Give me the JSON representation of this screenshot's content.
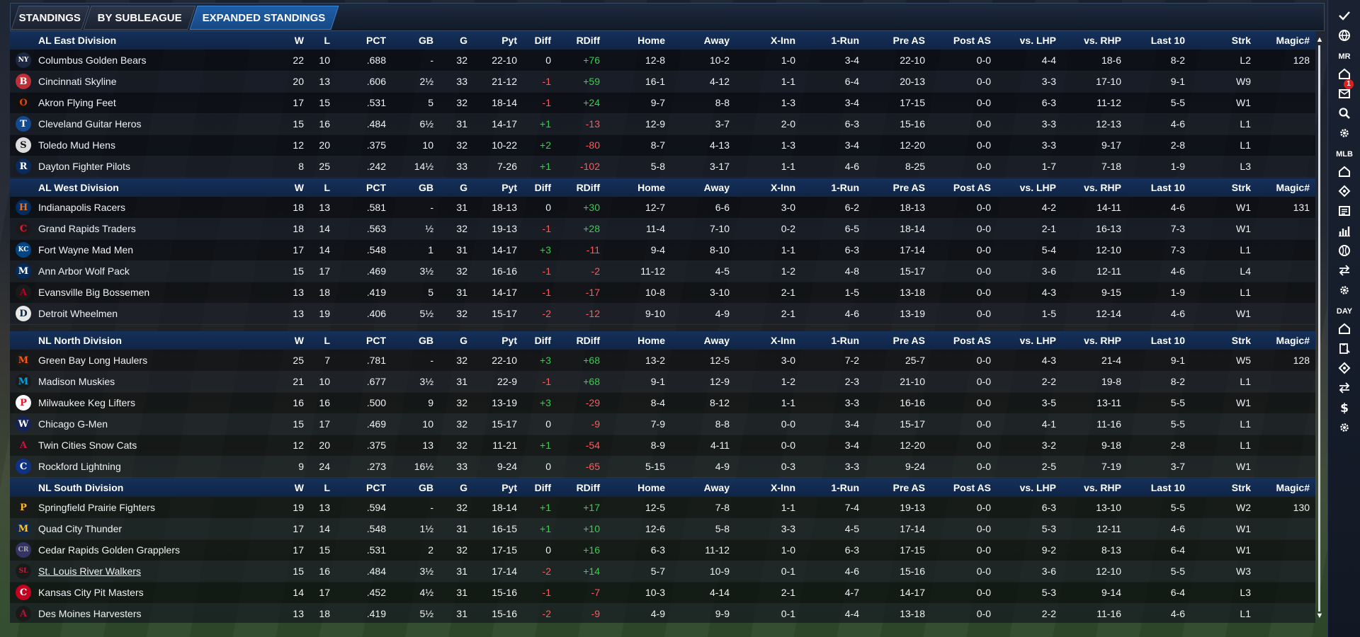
{
  "tabs": [
    {
      "label": "STANDINGS",
      "active": false
    },
    {
      "label": "BY SUBLEAGUE",
      "active": false
    },
    {
      "label": "EXPANDED STANDINGS",
      "active": true
    }
  ],
  "columns": [
    "W",
    "L",
    "PCT",
    "GB",
    "G",
    "Pyt",
    "Diff",
    "RDiff",
    "Home",
    "Away",
    "X-Inn",
    "1-Run",
    "Pre AS",
    "Post AS",
    "vs. LHP",
    "vs. RHP",
    "Last 10",
    "Strk",
    "Magic#"
  ],
  "divisions": [
    {
      "name": "AL East Division",
      "teams": [
        {
          "name": "Columbus Golden Bears",
          "logo": "yankees-logo",
          "vals": [
            "22",
            "10",
            ".688",
            "-",
            "32",
            "22-10",
            "0",
            "+76",
            "12-8",
            "10-2",
            "1-0",
            "3-4",
            "22-10",
            "0-0",
            "4-4",
            "18-6",
            "8-2",
            "L2",
            "128"
          ]
        },
        {
          "name": "Cincinnati Skyline",
          "logo": "redsox-logo",
          "vals": [
            "20",
            "13",
            ".606",
            "2½",
            "33",
            "21-12",
            "-1",
            "+59",
            "16-1",
            "4-12",
            "1-1",
            "6-4",
            "20-13",
            "0-0",
            "3-3",
            "17-10",
            "9-1",
            "W9",
            ""
          ]
        },
        {
          "name": "Akron  Flying Feet",
          "logo": "orioles-logo",
          "vals": [
            "17",
            "15",
            ".531",
            "5",
            "32",
            "18-14",
            "-1",
            "+24",
            "9-7",
            "8-8",
            "1-3",
            "3-4",
            "17-15",
            "0-0",
            "6-3",
            "11-12",
            "5-5",
            "W1",
            ""
          ]
        },
        {
          "name": "Cleveland Guitar Heros",
          "logo": "bluejays-logo",
          "vals": [
            "15",
            "16",
            ".484",
            "6½",
            "31",
            "14-17",
            "+1",
            "-13",
            "12-9",
            "3-7",
            "2-0",
            "6-3",
            "15-16",
            "0-0",
            "3-3",
            "12-13",
            "4-6",
            "L1",
            ""
          ]
        },
        {
          "name": "Toledo  Mud Hens",
          "logo": "whitesox-logo",
          "vals": [
            "12",
            "20",
            ".375",
            "10",
            "32",
            "10-22",
            "+2",
            "-80",
            "8-7",
            "4-13",
            "1-3",
            "3-4",
            "12-20",
            "0-0",
            "3-3",
            "9-17",
            "2-8",
            "L1",
            ""
          ]
        },
        {
          "name": "Dayton Fighter Pilots",
          "logo": "rays-logo",
          "vals": [
            "8",
            "25",
            ".242",
            "14½",
            "33",
            "7-26",
            "+1",
            "-102",
            "5-8",
            "3-17",
            "1-1",
            "4-6",
            "8-25",
            "0-0",
            "1-7",
            "7-18",
            "1-9",
            "L3",
            ""
          ]
        }
      ]
    },
    {
      "name": "AL West Division",
      "teams": [
        {
          "name": "Indianapolis Racers",
          "logo": "astros-logo",
          "vals": [
            "18",
            "13",
            ".581",
            "-",
            "31",
            "18-13",
            "0",
            "+30",
            "12-7",
            "6-6",
            "3-0",
            "6-2",
            "18-13",
            "0-0",
            "4-2",
            "14-11",
            "4-6",
            "W1",
            "131"
          ]
        },
        {
          "name": "Grand Rapids Traders",
          "logo": "indians-logo",
          "vals": [
            "18",
            "14",
            ".563",
            "½",
            "32",
            "19-13",
            "-1",
            "+28",
            "11-4",
            "7-10",
            "0-2",
            "6-5",
            "18-14",
            "0-0",
            "2-1",
            "16-13",
            "7-3",
            "W1",
            ""
          ]
        },
        {
          "name": "Fort Wayne Mad Men",
          "logo": "royals-logo",
          "vals": [
            "17",
            "14",
            ".548",
            "1",
            "31",
            "14-17",
            "+3",
            "-11",
            "9-4",
            "8-10",
            "1-1",
            "6-3",
            "17-14",
            "0-0",
            "5-4",
            "12-10",
            "7-3",
            "L1",
            ""
          ]
        },
        {
          "name": "Ann Arbor Wolf Pack",
          "logo": "twins-logo",
          "vals": [
            "15",
            "17",
            ".469",
            "3½",
            "32",
            "16-16",
            "-1",
            "-2",
            "11-12",
            "4-5",
            "1-2",
            "4-8",
            "15-17",
            "0-0",
            "3-6",
            "12-11",
            "4-6",
            "L4",
            ""
          ]
        },
        {
          "name": "Evansville Big Bossemen",
          "logo": "angels-logo",
          "vals": [
            "13",
            "18",
            ".419",
            "5",
            "31",
            "14-17",
            "-1",
            "-17",
            "10-8",
            "3-10",
            "2-1",
            "1-5",
            "13-18",
            "0-0",
            "4-3",
            "9-15",
            "1-9",
            "L1",
            ""
          ]
        },
        {
          "name": "Detroit Wheelmen",
          "logo": "tigers-logo",
          "vals": [
            "13",
            "19",
            ".406",
            "5½",
            "32",
            "15-17",
            "-2",
            "-12",
            "9-10",
            "4-9",
            "2-1",
            "4-6",
            "13-19",
            "0-0",
            "1-5",
            "12-14",
            "4-6",
            "W1",
            ""
          ]
        }
      ]
    },
    {
      "name": "NL North Division",
      "teams": [
        {
          "name": "Green Bay  Long Haulers",
          "logo": "mets-logo",
          "vals": [
            "25",
            "7",
            ".781",
            "-",
            "32",
            "22-10",
            "+3",
            "+68",
            "13-2",
            "12-5",
            "3-0",
            "7-2",
            "25-7",
            "0-0",
            "4-3",
            "21-4",
            "9-1",
            "W5",
            "128"
          ]
        },
        {
          "name": "Madison Muskies",
          "logo": "marlins-logo",
          "vals": [
            "21",
            "10",
            ".677",
            "3½",
            "31",
            "22-9",
            "-1",
            "+68",
            "9-1",
            "12-9",
            "1-2",
            "2-3",
            "21-10",
            "0-0",
            "2-2",
            "19-8",
            "8-2",
            "L1",
            ""
          ]
        },
        {
          "name": "Milwaukee Keg Lifters",
          "logo": "phillies-logo",
          "vals": [
            "16",
            "16",
            ".500",
            "9",
            "32",
            "13-19",
            "+3",
            "-29",
            "8-4",
            "8-12",
            "1-1",
            "3-3",
            "16-16",
            "0-0",
            "3-5",
            "13-11",
            "5-5",
            "W1",
            ""
          ]
        },
        {
          "name": "Chicago G-Men",
          "logo": "nationals-logo",
          "vals": [
            "15",
            "17",
            ".469",
            "10",
            "32",
            "15-17",
            "0",
            "-9",
            "7-9",
            "8-8",
            "0-0",
            "3-4",
            "15-17",
            "0-0",
            "4-1",
            "11-16",
            "5-5",
            "L1",
            ""
          ]
        },
        {
          "name": "Twin Cities Snow Cats",
          "logo": "braves-logo",
          "vals": [
            "12",
            "20",
            ".375",
            "13",
            "32",
            "11-21",
            "+1",
            "-54",
            "8-9",
            "4-11",
            "0-0",
            "3-4",
            "12-20",
            "0-0",
            "3-2",
            "9-18",
            "2-8",
            "L1",
            ""
          ]
        },
        {
          "name": "Rockford Lightning",
          "logo": "cubs-logo",
          "vals": [
            "9",
            "24",
            ".273",
            "16½",
            "33",
            "9-24",
            "0",
            "-65",
            "5-15",
            "4-9",
            "0-3",
            "3-3",
            "9-24",
            "0-0",
            "2-5",
            "7-19",
            "3-7",
            "W1",
            ""
          ]
        }
      ]
    },
    {
      "name": "NL South Division",
      "teams": [
        {
          "name": "Springfield Prairie Fighters",
          "logo": "pirates-logo",
          "vals": [
            "19",
            "13",
            ".594",
            "-",
            "32",
            "18-14",
            "+1",
            "+17",
            "12-5",
            "7-8",
            "1-1",
            "7-4",
            "19-13",
            "0-0",
            "6-3",
            "13-10",
            "5-5",
            "W2",
            "130"
          ]
        },
        {
          "name": "Quad City Thunder",
          "logo": "brewers-logo",
          "vals": [
            "17",
            "14",
            ".548",
            "1½",
            "31",
            "16-15",
            "+1",
            "+10",
            "12-6",
            "5-8",
            "3-3",
            "4-5",
            "17-14",
            "0-0",
            "5-3",
            "12-11",
            "4-6",
            "W1",
            ""
          ]
        },
        {
          "name": "Cedar Rapids Golden Grapplers",
          "logo": "rockies-logo",
          "vals": [
            "17",
            "15",
            ".531",
            "2",
            "32",
            "17-15",
            "0",
            "+16",
            "6-3",
            "11-12",
            "1-0",
            "6-3",
            "17-15",
            "0-0",
            "9-2",
            "8-13",
            "6-4",
            "W1",
            ""
          ]
        },
        {
          "name": "St. Louis River Walkers",
          "logo": "cardinals-logo",
          "underline": true,
          "vals": [
            "15",
            "16",
            ".484",
            "3½",
            "31",
            "17-14",
            "-2",
            "+14",
            "5-7",
            "10-9",
            "0-1",
            "4-6",
            "15-16",
            "0-0",
            "3-6",
            "12-10",
            "5-5",
            "W3",
            ""
          ]
        },
        {
          "name": "Kansas City Pit Masters",
          "logo": "reds-logo",
          "vals": [
            "14",
            "17",
            ".452",
            "4½",
            "31",
            "15-16",
            "-1",
            "-7",
            "10-3",
            "4-14",
            "2-1",
            "4-7",
            "14-17",
            "0-0",
            "5-3",
            "9-14",
            "6-4",
            "L3",
            ""
          ]
        },
        {
          "name": "Des Moines  Harvesters",
          "logo": "diamondbacks-logo",
          "vals": [
            "13",
            "18",
            ".419",
            "5½",
            "31",
            "15-16",
            "-2",
            "-9",
            "4-9",
            "9-9",
            "0-1",
            "4-4",
            "13-18",
            "0-0",
            "2-2",
            "11-16",
            "4-6",
            "L1",
            ""
          ]
        }
      ]
    }
  ],
  "sidebar": {
    "labels": {
      "mr": "MR",
      "mlb": "MLB",
      "day": "DAY"
    },
    "badge": "1",
    "icons": [
      "check-icon",
      "globe-icon",
      "home-icon",
      "mail-icon",
      "search-icon",
      "gear-icon",
      "home-icon",
      "location-icon",
      "news-icon",
      "bar-chart-icon",
      "baseball-icon",
      "transfer-icon",
      "gear-icon",
      "home-icon",
      "clipboard-icon",
      "location-icon",
      "transfer-icon",
      "dollar-icon",
      "gear-icon"
    ]
  },
  "colors": {
    "positive": "#35d24a",
    "negative": "#ff5a5a",
    "header": "#15305a",
    "active_tab": "#1e5ea8"
  }
}
